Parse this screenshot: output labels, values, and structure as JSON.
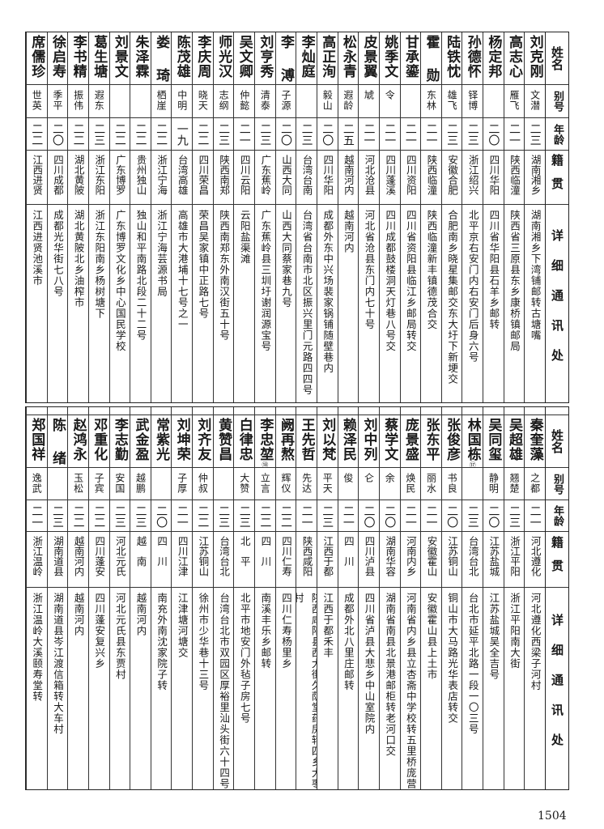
{
  "headers": {
    "name": "姓名",
    "nickname": "别号",
    "age": "年龄",
    "hometown": "籍贯",
    "address": "详细通讯处"
  },
  "tables": [
    {
      "rows": [
        {
          "name": "刘克刚",
          "nickname": "文潜",
          "age": "二三",
          "hometown": "湖南湘乡",
          "address": "湖南湘乡下湾铺邮转古塘嘴"
        },
        {
          "name": "高志心",
          "nickname": "雁飞",
          "age": "二一",
          "hometown": "陕西临潼",
          "address": "陕西省三原县东乡康桥镇邮局"
        },
        {
          "name": "杨定邦",
          "nickname": "",
          "age": "二〇",
          "hometown": "四川华阳",
          "address": "四川省华阳县石羊乡邮转"
        },
        {
          "name": "孙德怀",
          "nickname": "铎博",
          "age": "二三",
          "hometown": "浙江绍兴",
          "address": "北平京右安门内右安门后身六号"
        },
        {
          "name": "陆铁忱",
          "nickname": "雄飞",
          "age": "二三",
          "hometown": "安徽合肥",
          "address": "合肥南乡晓星集邮交东大圩下新埂交"
        },
        {
          "name": "霍勋",
          "nickname": "东林",
          "age": "二一",
          "hometown": "陕西临潼",
          "address": "陕西临潼新丰镇德茂合交"
        },
        {
          "name": "甘承鎏",
          "nickname": "",
          "age": "二一",
          "hometown": "四川资阳",
          "address": "四川省资阳县临江乡邮局转交"
        },
        {
          "name": "姚季文",
          "nickname": "令",
          "age": "二一",
          "hometown": "四川蓬溪",
          "address": "四川成都鼓楼洞天灯巷八号交"
        },
        {
          "name": "皮景翼",
          "nickname": "虓",
          "age": "二一",
          "hometown": "河北沧县",
          "address": "河北省沧县东门内七十号"
        },
        {
          "name": "松永青",
          "nickname": "遐龄",
          "age": "二五",
          "hometown": "越南河内",
          "address": "越南河内"
        },
        {
          "name": "高正洵",
          "nickname": "毅山",
          "age": "二〇",
          "hometown": "四川华阳",
          "address": "成都外东中兴场裴家锅铺随壁巷内"
        },
        {
          "name": "李灿庭",
          "nickname": "",
          "age": "二三",
          "hometown": "台湾台南",
          "address": "台湾省台南市北区振兴里门元路四四号"
        },
        {
          "name": "李溥",
          "nickname": "子源",
          "age": "二〇",
          "hometown": "山西大同",
          "address": "山西大同蔡家巷九号"
        },
        {
          "name": "刘亨秀",
          "nickname": "清泰",
          "age": "二三",
          "hometown": "广东蕉岭",
          "address": "广东蕉岭县三圳圩谢润源宝号"
        },
        {
          "name": "吴文卿",
          "nickname": "仲懿",
          "age": "二一",
          "hometown": "四川云阳",
          "address": "云阳盐渠滩"
        },
        {
          "name": "师光汉",
          "nickname": "志纲",
          "age": "二三",
          "hometown": "陕西南郑",
          "address": "陕西南郑东外南汉街五十号"
        },
        {
          "name": "李庆周",
          "nickname": "晓天",
          "age": "二二",
          "hometown": "四川荣昌",
          "address": "荣昌吴家镇中正路七号"
        },
        {
          "name": "陈茂雄",
          "nickname": "中明",
          "age": "一九",
          "hometown": "台湾高雄",
          "address": "高雄市大港埔十七号之一"
        },
        {
          "name": "娄琦",
          "nickname": "栖崖",
          "age": "二二",
          "hometown": "浙江宁海",
          "address": "浙江宁海芸源书局"
        },
        {
          "name": "朱泽霖",
          "nickname": "",
          "age": "二二",
          "hometown": "贵州独山",
          "address": "独山和平南路北段二十二号"
        },
        {
          "name": "刘景文",
          "nickname": "",
          "age": "二二",
          "hometown": "广东博罗",
          "address": "广东博罗文化乡中心国民学校"
        },
        {
          "name": "葛生塘",
          "nickname": "遐东",
          "age": "二三",
          "hometown": "浙江东阳",
          "address": "浙江东阳南乡杨树塘下"
        },
        {
          "name": "李书精",
          "nickname": "振伟",
          "age": "二二",
          "hometown": "湖北黄陂",
          "address": "湖北黄陂北乡油榨市"
        },
        {
          "name": "徐启寿",
          "nickname": "季平",
          "age": "二〇",
          "hometown": "四川成都",
          "address": "成都光华街七八号"
        },
        {
          "name": "席儒珍",
          "nickname": "世英",
          "age": "二二",
          "hometown": "江西进贤",
          "address": "江西进贤池溪市"
        }
      ]
    },
    {
      "rows": [
        {
          "name": "秦奎藻",
          "nickname": "之都",
          "age": "二一",
          "hometown": "河北遵化",
          "address": "河北遵化西梁子河村"
        },
        {
          "name": "吴超雄",
          "nickname": "翘楚",
          "age": "二三",
          "hometown": "浙江平阳",
          "address": "浙江平阳南大街"
        },
        {
          "name": "吴同玺",
          "nickname": "静明",
          "age": "二〇",
          "hometown": "江苏盐城",
          "address": "江苏盐城吴全吉号"
        },
        {
          "name": "林国栋",
          "note": "⑰",
          "nickname": "",
          "age": "二三",
          "hometown": "台湾台北",
          "address": "台北市延平北路一段一〇三号"
        },
        {
          "name": "张俊彦",
          "nickname": "书良",
          "age": "二〇",
          "hometown": "江苏铜山",
          "address": "铜山市大马路光华表店转交"
        },
        {
          "name": "张东平",
          "nickname": "丽水",
          "age": "二一",
          "hometown": "安徽霍山",
          "address": "安徽霍山县上土市"
        },
        {
          "name": "庞景盛",
          "nickname": "焕民",
          "age": "二一",
          "hometown": "河南内乡",
          "address": "河南省内乡县立杏斋中学校转五里桥庞营"
        },
        {
          "name": "蔡学文",
          "nickname": "余",
          "age": "二〇",
          "hometown": "湖南华容",
          "address": "湖南省南县北景港邮柜转老河口交"
        },
        {
          "name": "刘中列",
          "nickname": "仑",
          "age": "二〇",
          "hometown": "四川泸县",
          "address": "四川省泸县大悲乡中山室院内"
        },
        {
          "name": "赖泽民",
          "nickname": "俊",
          "age": "二一",
          "hometown": "四　川",
          "address": "成都外北八里庄邮转"
        },
        {
          "name": "刘以梵",
          "nickname": "平天",
          "age": "二三",
          "hometown": "江西于都",
          "address": "江西于都禾丰"
        },
        {
          "name": "王先哲",
          "nickname": "先达",
          "age": "二一",
          "hometown": "陕西咸阳",
          "address": "陕西咸阳县西大街久荫堂药房转四乡大枣村"
        },
        {
          "name": "阙再熬",
          "nickname": "辉仪",
          "age": "二二",
          "hometown": "四川仁寿",
          "address": "四川仁寿杨里乡"
        },
        {
          "name": "李忠堃",
          "note": "⑱",
          "nickname": "立言",
          "age": "二二",
          "hometown": "四　川",
          "address": "南溪丰乐乡邮转"
        },
        {
          "name": "白律忠",
          "nickname": "大赞",
          "age": "二三",
          "hometown": "北　平",
          "address": "北平市地安门外毡子房七号"
        },
        {
          "name": "黄赞昌",
          "nickname": "",
          "age": "二三",
          "hometown": "台湾台北",
          "address": "台湾台北市双园区厚裕里汕头街六十四号"
        },
        {
          "name": "刘齐友",
          "nickname": "仲叔",
          "age": "二二",
          "hometown": "江苏铜山",
          "address": "徐州市少华巷十三号"
        },
        {
          "name": "刘坤荣",
          "nickname": "子厚",
          "age": "二一",
          "hometown": "四川江津",
          "address": "江津塘河塘交"
        },
        {
          "name": "常紫光",
          "nickname": "",
          "age": "二〇",
          "hometown": "四　川",
          "address": "南充外南沈家院子转"
        },
        {
          "name": "武金盈",
          "nickname": "越鹏",
          "age": "二三",
          "hometown": "越　南",
          "address": "越南河内"
        },
        {
          "name": "李志勤",
          "nickname": "安国",
          "age": "二三",
          "hometown": "河北元氏",
          "address": "河北元氏县东贾村"
        },
        {
          "name": "邓重化",
          "nickname": "子宾",
          "age": "二二",
          "hometown": "四川蓬安",
          "address": "四川蓬安复兴乡"
        },
        {
          "name": "赵鸿永",
          "nickname": "玉松",
          "age": "二二",
          "hometown": "越南河内",
          "address": "越南河内"
        },
        {
          "name": "陈绪",
          "nickname": "",
          "age": "二三",
          "hometown": "湖南道县",
          "address": "湖南道县岑江渡信箱转大车村"
        },
        {
          "name": "郑国祥",
          "nickname": "逸武",
          "age": "二一",
          "hometown": "浙江温岭",
          "address": "浙江温岭大溪颐寿堂转"
        }
      ]
    }
  ],
  "page_number": "1504"
}
